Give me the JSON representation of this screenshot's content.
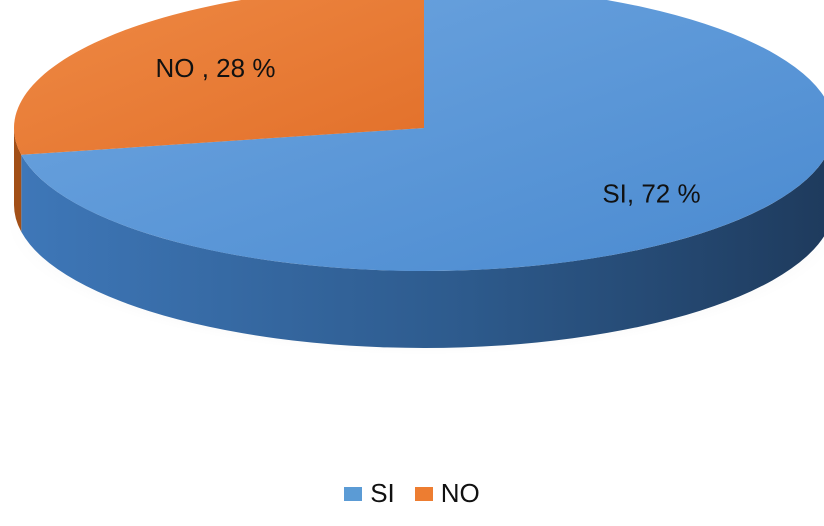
{
  "chart_data": {
    "type": "pie",
    "style": "3d",
    "title": "",
    "slices": [
      {
        "label": "SI",
        "value": 72,
        "data_label": "SI, 72 %",
        "color": "#4F8FD6",
        "side_dark": "#1E3A5C",
        "side_light": "#3E77B8"
      },
      {
        "label": "NO",
        "value": 28,
        "data_label": "NO , 28 %",
        "color": "#E8772E",
        "side_dark": "#A24F17",
        "side_light": "#D86A23"
      }
    ],
    "legend": {
      "position": "bottom",
      "items": [
        "SI",
        "NO"
      ]
    }
  }
}
